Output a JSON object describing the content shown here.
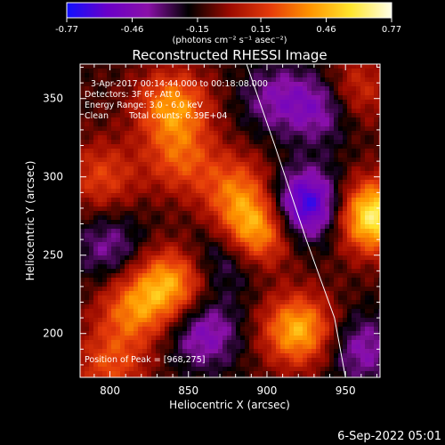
{
  "footer": {
    "timestamp": "6-Sep-2022 05:01"
  },
  "colorbar": {
    "ticks": [
      -0.77,
      -0.46,
      -0.15,
      0.15,
      0.46,
      0.77
    ],
    "tick_labels": [
      "-0.77",
      "-0.46",
      "-0.15",
      "0.15",
      "0.46",
      "0.77"
    ],
    "unit_label": "(photons cm⁻² s⁻¹ asec⁻²)",
    "range": [
      -0.77,
      0.77
    ],
    "colormap": [
      "#1010ff",
      "#6a00c8",
      "#8a10a8",
      "#000000",
      "#9a0a00",
      "#e53a0a",
      "#ff9500",
      "#ffe62e",
      "#ffffe8"
    ]
  },
  "chart_data": {
    "type": "heatmap",
    "title": "Reconstructed RHESSI Image",
    "xlabel": "Heliocentric X (arcsec)",
    "ylabel": "Heliocentric Y (arcsec)",
    "xlim": [
      781,
      972
    ],
    "ylim": [
      172,
      372
    ],
    "xticks": [
      800,
      850,
      900,
      950
    ],
    "yticks": [
      200,
      250,
      300,
      350
    ],
    "xtick_labels": [
      "800",
      "850",
      "900",
      "950"
    ],
    "ytick_labels": [
      "200",
      "250",
      "300",
      "350"
    ],
    "annotations": [
      "3-Apr-2017 00:14:44.000 to 00:18:08.000",
      "Detectors: 3F 6F, Att 0",
      "Energy Range: 3.0 - 6.0 keV",
      "Clean",
      "Total counts: 6.39E+04",
      "Position of Peak = [968,275]"
    ],
    "peak": {
      "x": 968,
      "y": 275,
      "value": 0.77
    },
    "limb": [
      [
        887,
        372
      ],
      [
        905,
        320
      ],
      [
        925,
        260
      ],
      [
        943,
        210
      ],
      [
        950,
        172
      ]
    ],
    "sources": [
      {
        "x": 968,
        "y": 275,
        "value": 0.77
      },
      {
        "x": 892,
        "y": 265,
        "value": 0.62
      },
      {
        "x": 840,
        "y": 345,
        "value": 0.5
      },
      {
        "x": 920,
        "y": 202,
        "value": 0.58
      },
      {
        "x": 838,
        "y": 232,
        "value": 0.52
      },
      {
        "x": 815,
        "y": 215,
        "value": 0.4
      },
      {
        "x": 880,
        "y": 292,
        "value": 0.36
      },
      {
        "x": 845,
        "y": 312,
        "value": 0.33
      },
      {
        "x": 955,
        "y": 355,
        "value": 0.3
      },
      {
        "x": 795,
        "y": 300,
        "value": 0.3
      },
      {
        "x": 800,
        "y": 180,
        "value": 0.32
      },
      {
        "x": 925,
        "y": 282,
        "value": -0.6
      },
      {
        "x": 875,
        "y": 250,
        "value": -0.3
      },
      {
        "x": 935,
        "y": 345,
        "value": -0.35
      },
      {
        "x": 860,
        "y": 200,
        "value": -0.35
      },
      {
        "x": 800,
        "y": 255,
        "value": -0.25
      },
      {
        "x": 960,
        "y": 190,
        "value": -0.3
      },
      {
        "x": 905,
        "y": 350,
        "value": -0.25
      }
    ]
  }
}
